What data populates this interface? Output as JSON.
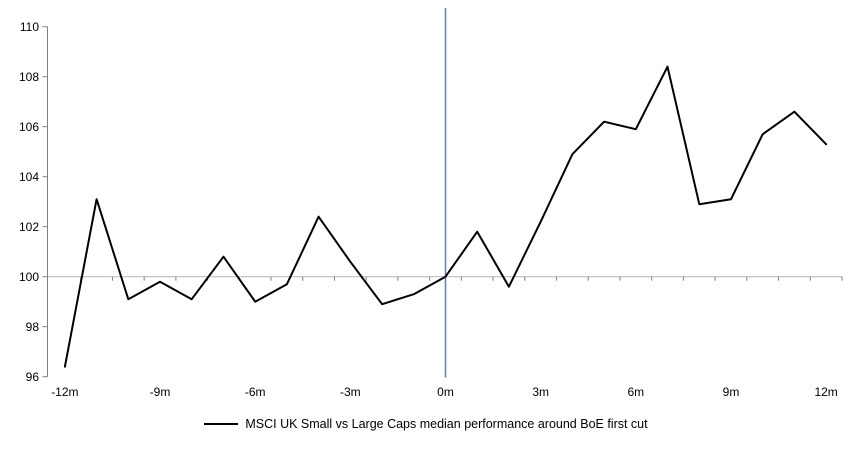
{
  "chart_data": {
    "type": "line",
    "title": "",
    "x": [
      -12,
      -11,
      -10,
      -9,
      -8,
      -7,
      -6,
      -5,
      -4,
      -3,
      -2,
      -1,
      0,
      1,
      2,
      3,
      4,
      5,
      6,
      7,
      8,
      9,
      10,
      11,
      12
    ],
    "series": [
      {
        "name": "MSCI UK Small vs Large Caps median performance around BoE first cut",
        "color": "#000000",
        "values": [
          96.4,
          103.1,
          99.1,
          99.8,
          99.1,
          100.8,
          99.0,
          99.7,
          102.4,
          100.6,
          98.9,
          99.3,
          100.0,
          101.8,
          99.6,
          102.2,
          104.9,
          106.2,
          105.9,
          108.4,
          102.9,
          103.1,
          105.7,
          106.6,
          105.3
        ]
      }
    ],
    "x_tick_values": [
      -12,
      -9,
      -6,
      -3,
      0,
      3,
      6,
      9,
      12
    ],
    "x_tick_labels": [
      "-12m",
      "-9m",
      "-6m",
      "-3m",
      "0m",
      "3m",
      "6m",
      "9m",
      "12m"
    ],
    "y_ticks": [
      96,
      98,
      100,
      102,
      104,
      106,
      108,
      110
    ],
    "ylim": [
      96,
      110
    ],
    "xlim": [
      -12.5,
      12.5
    ],
    "baseline": 100,
    "event_line_x": 0,
    "grid": "off",
    "legend_position": "bottom",
    "colors": {
      "series_line": "#000000",
      "event_line": "#4e86c5",
      "baseline_line": "#bfbfbf",
      "axis": "#808080",
      "tick_label": "#000000"
    }
  },
  "legend": {
    "label": "MSCI UK Small vs Large Caps median performance around BoE first cut"
  }
}
